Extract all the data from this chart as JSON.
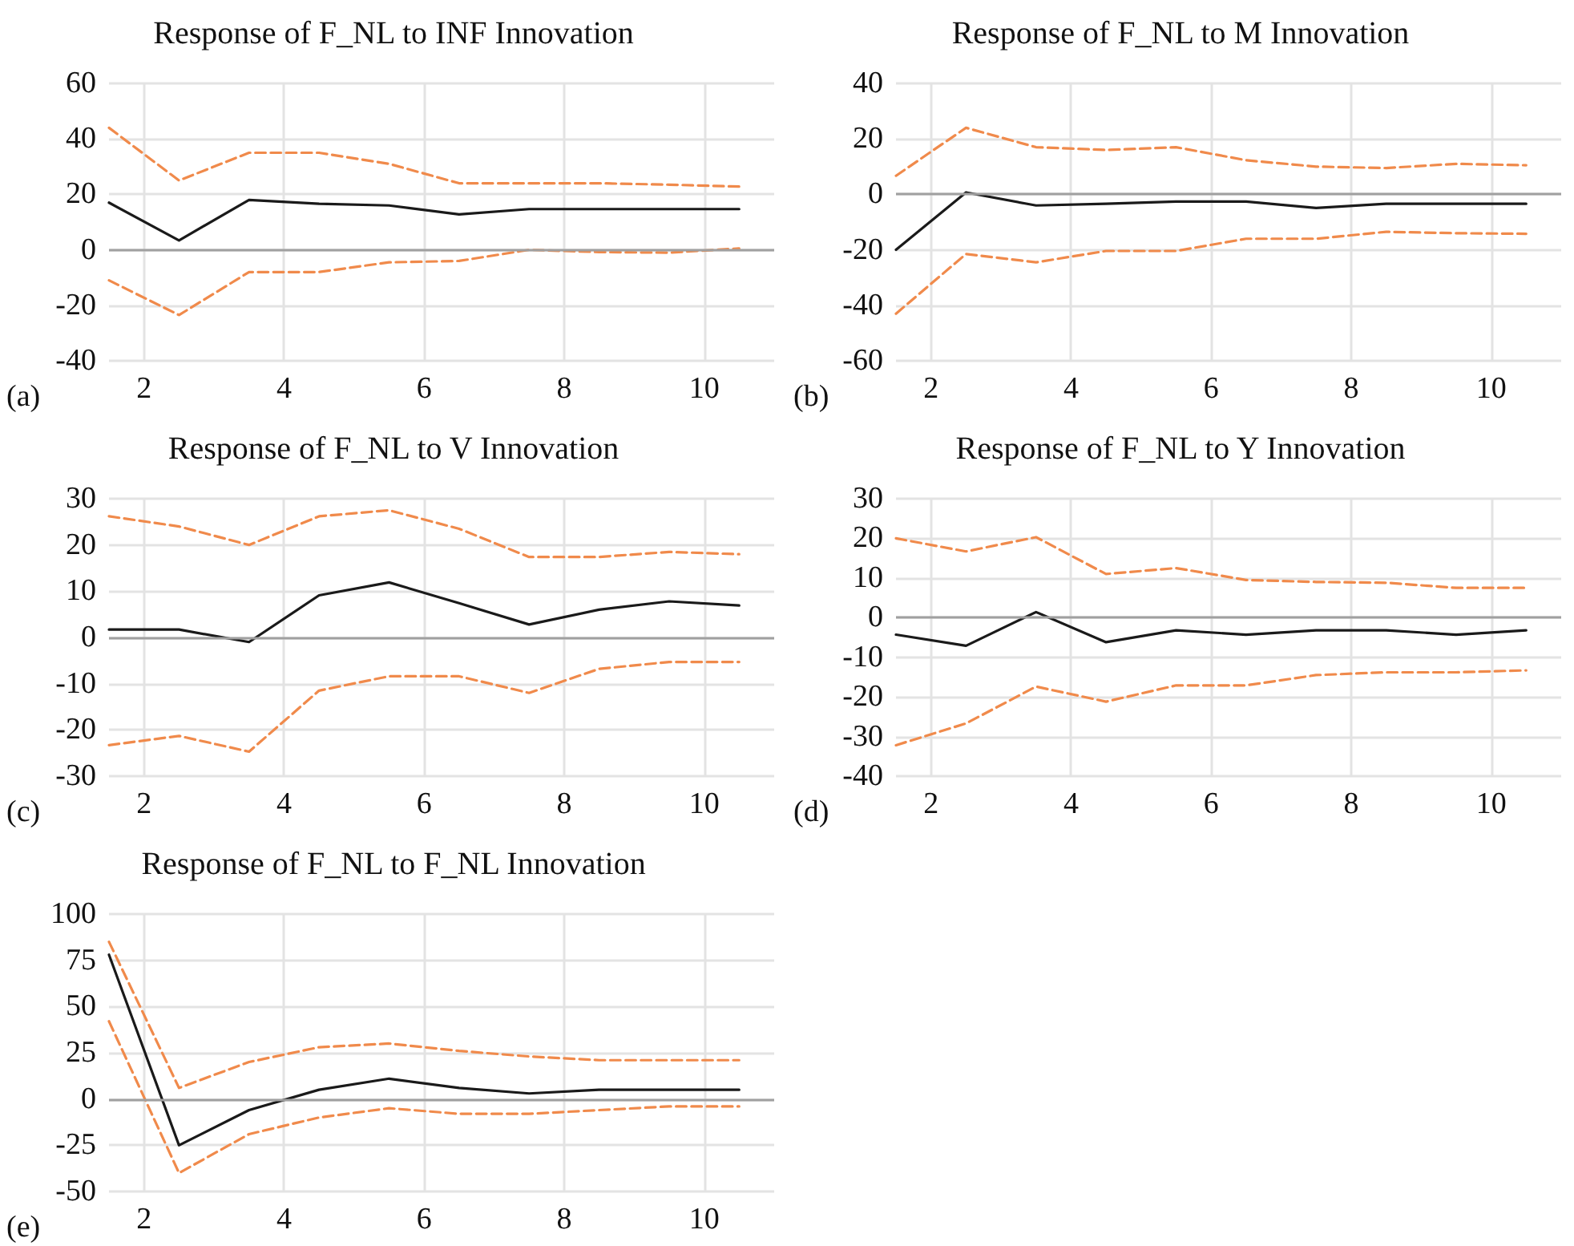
{
  "chart_data": [
    {
      "type": "line",
      "title": "Response of F_NL to INF Innovation",
      "annotations": [
        "(a)"
      ],
      "x": [
        1,
        2,
        3,
        4,
        5,
        6,
        7,
        8,
        9,
        10
      ],
      "xlim": [
        1,
        10.5
      ],
      "xticks": [
        {
          "value": 1.5,
          "label": "2"
        },
        {
          "value": 3.5,
          "label": "4"
        },
        {
          "value": 5.5,
          "label": "6"
        },
        {
          "value": 7.5,
          "label": "8"
        },
        {
          "value": 9.5,
          "label": "10"
        }
      ],
      "ylim": [
        -40,
        60
      ],
      "yticks": [
        -40,
        -20,
        0,
        20,
        40,
        60
      ],
      "grid": true,
      "ref_lines": [
        {
          "axis": "y",
          "value": 0,
          "color": "#a0a0a0"
        }
      ],
      "series": [
        {
          "color": "#1a1a1a",
          "line_style": "solid",
          "values": [
            17,
            3.4,
            18,
            16.6,
            16,
            12.8,
            14.7,
            14.7,
            14.7,
            14.7
          ]
        },
        {
          "color": "#f08a4b",
          "line_style": "dashed",
          "values": [
            44,
            25,
            35,
            35,
            31,
            24,
            24,
            24,
            23.5,
            22.8
          ]
        },
        {
          "color": "#f08a4b",
          "line_style": "dashed",
          "values": [
            -11,
            -23.5,
            -8,
            -8,
            -4.5,
            -4,
            0,
            -0.8,
            -1,
            0.5
          ]
        }
      ]
    },
    {
      "type": "line",
      "title": "Response of F_NL to M Innovation",
      "annotations": [
        "(b)"
      ],
      "x": [
        1,
        2,
        3,
        4,
        5,
        6,
        7,
        8,
        9,
        10
      ],
      "xlim": [
        1,
        10.5
      ],
      "xticks": [
        {
          "value": 1.5,
          "label": "2"
        },
        {
          "value": 3.5,
          "label": "4"
        },
        {
          "value": 5.5,
          "label": "6"
        },
        {
          "value": 7.5,
          "label": "8"
        },
        {
          "value": 9.5,
          "label": "10"
        }
      ],
      "ylim": [
        -60,
        40
      ],
      "yticks": [
        -60,
        -40,
        -20,
        0,
        20,
        40
      ],
      "grid": true,
      "ref_lines": [
        {
          "axis": "y",
          "value": 0,
          "color": "#a0a0a0"
        }
      ],
      "series": [
        {
          "color": "#1a1a1a",
          "line_style": "solid",
          "values": [
            -20,
            0.7,
            -4,
            -3.4,
            -2.6,
            -2.6,
            -4.9,
            -3.4,
            -3.4,
            -3.4
          ]
        },
        {
          "color": "#f08a4b",
          "line_style": "dashed",
          "values": [
            6.7,
            24,
            17,
            16,
            17,
            12.3,
            10,
            9.5,
            11,
            10.5
          ]
        },
        {
          "color": "#f08a4b",
          "line_style": "dashed",
          "values": [
            -43,
            -21.5,
            -24.5,
            -20.4,
            -20.4,
            -16,
            -16,
            -13.5,
            -14,
            -14.2
          ]
        }
      ]
    },
    {
      "type": "line",
      "title": "Response of F_NL to V Innovation",
      "annotations": [
        "(c)"
      ],
      "x": [
        1,
        2,
        3,
        4,
        5,
        6,
        7,
        8,
        9,
        10
      ],
      "xlim": [
        1,
        10.5
      ],
      "xticks": [
        {
          "value": 1.5,
          "label": "2"
        },
        {
          "value": 3.5,
          "label": "4"
        },
        {
          "value": 5.5,
          "label": "6"
        },
        {
          "value": 7.5,
          "label": "8"
        },
        {
          "value": 9.5,
          "label": "10"
        }
      ],
      "ylim": [
        -30,
        30
      ],
      "yticks": [
        -30,
        -20,
        -10,
        0,
        10,
        20,
        30
      ],
      "grid": true,
      "ref_lines": [
        {
          "axis": "y",
          "value": 0,
          "color": "#a0a0a0"
        }
      ],
      "series": [
        {
          "color": "#1a1a1a",
          "line_style": "solid",
          "values": [
            1.7,
            1.7,
            -1,
            9.1,
            11.9,
            7.4,
            2.8,
            6,
            7.8,
            6.9
          ]
        },
        {
          "color": "#f08a4b",
          "line_style": "dashed",
          "values": [
            26.2,
            24,
            20,
            26.2,
            27.5,
            23.5,
            17.4,
            17.4,
            18.5,
            18
          ]
        },
        {
          "color": "#f08a4b",
          "line_style": "dashed",
          "values": [
            -23.3,
            -21.3,
            -24.7,
            -11.5,
            -8.4,
            -8.4,
            -12,
            -6.8,
            -5.3,
            -5.3
          ]
        }
      ]
    },
    {
      "type": "line",
      "title": "Response of F_NL to Y Innovation",
      "annotations": [
        "(d)"
      ],
      "x": [
        1,
        2,
        3,
        4,
        5,
        6,
        7,
        8,
        9,
        10
      ],
      "xlim": [
        1,
        10.5
      ],
      "xticks": [
        {
          "value": 1.5,
          "label": "2"
        },
        {
          "value": 3.5,
          "label": "4"
        },
        {
          "value": 5.5,
          "label": "6"
        },
        {
          "value": 7.5,
          "label": "8"
        },
        {
          "value": 9.5,
          "label": "10"
        }
      ],
      "ylim": [
        -40,
        30
      ],
      "yticks": [
        -40,
        -30,
        -20,
        -10,
        0,
        10,
        20,
        30
      ],
      "grid": true,
      "ref_lines": [
        {
          "axis": "y",
          "value": 0,
          "color": "#a0a0a0"
        }
      ],
      "series": [
        {
          "color": "#1a1a1a",
          "line_style": "solid",
          "values": [
            -4.3,
            -7.1,
            1.4,
            -6.2,
            -3.2,
            -4.3,
            -3.2,
            -3.2,
            -4.3,
            -3.2
          ]
        },
        {
          "color": "#f08a4b",
          "line_style": "dashed",
          "values": [
            20,
            16.7,
            20.3,
            11,
            12.5,
            9.5,
            9,
            8.8,
            7.5,
            7.5
          ]
        },
        {
          "color": "#f08a4b",
          "line_style": "dashed",
          "values": [
            -32.2,
            -26.7,
            -17.4,
            -21.2,
            -17.1,
            -17.1,
            -14.5,
            -13.8,
            -13.8,
            -13.3
          ]
        }
      ]
    },
    {
      "type": "line",
      "title": "Response of F_NL to F_NL Innovation",
      "annotations": [
        "(e)"
      ],
      "x": [
        1,
        2,
        3,
        4,
        5,
        6,
        7,
        8,
        9,
        10
      ],
      "xlim": [
        1,
        10.5
      ],
      "xticks": [
        {
          "value": 1.5,
          "label": "2"
        },
        {
          "value": 3.5,
          "label": "4"
        },
        {
          "value": 5.5,
          "label": "6"
        },
        {
          "value": 7.5,
          "label": "8"
        },
        {
          "value": 9.5,
          "label": "10"
        }
      ],
      "ylim": [
        -50,
        100
      ],
      "yticks": [
        -50,
        -25,
        0,
        25,
        50,
        75,
        100
      ],
      "grid": true,
      "ref_lines": [
        {
          "axis": "y",
          "value": 0,
          "color": "#a0a0a0"
        }
      ],
      "series": [
        {
          "color": "#1a1a1a",
          "line_style": "solid",
          "values": [
            78,
            -25,
            -6,
            5,
            11,
            6,
            3,
            5,
            5,
            5
          ]
        },
        {
          "color": "#f08a4b",
          "line_style": "dashed",
          "values": [
            85,
            6,
            20,
            28,
            30,
            26,
            23,
            21,
            21,
            21
          ]
        },
        {
          "color": "#f08a4b",
          "line_style": "dashed",
          "values": [
            42,
            -40,
            -19,
            -10,
            -5,
            -8,
            -8,
            -6,
            -4,
            -4
          ]
        }
      ]
    }
  ]
}
